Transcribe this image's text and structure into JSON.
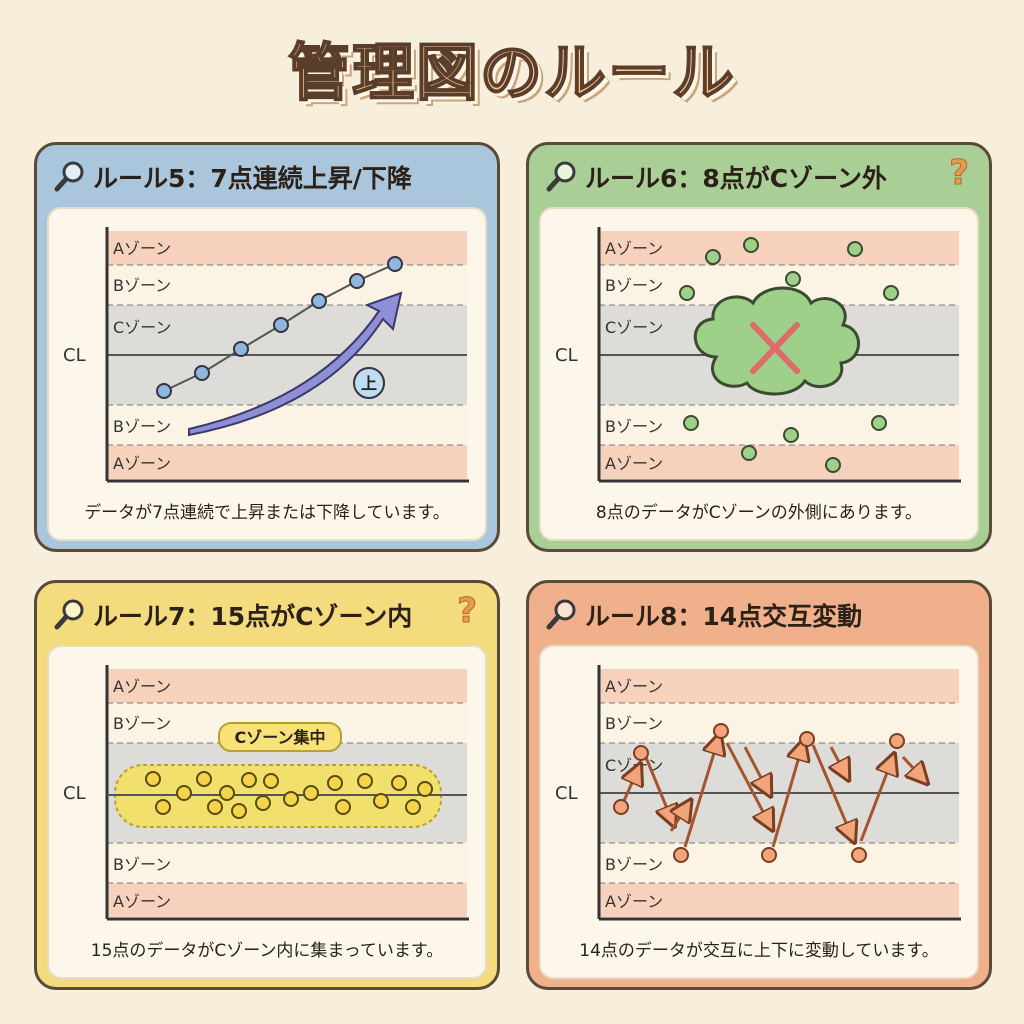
{
  "title": "管理図のルール",
  "zones": {
    "a": "Aゾーン",
    "b": "Bゾーン",
    "c": "Cゾーン",
    "cl": "CL"
  },
  "colors": {
    "a_zone": "#f6d2bd",
    "c_zone": "#dedcd8",
    "rule5_accent": "#8fb6dc",
    "rule6_accent": "#9fd08a",
    "rule7_accent": "#f2d85c",
    "rule8_accent": "#f2a47c"
  },
  "icons": [
    "magnifier-icon",
    "question-mark-icon",
    "cross-icon",
    "cloud-icon",
    "arrow-icon"
  ],
  "panels": [
    {
      "title": "ルール5：7点連続上昇/下降",
      "caption": "データが7点連続で上昇または下降しています。",
      "badge": "上",
      "question": ""
    },
    {
      "title": "ルール6：8点がCゾーン外",
      "caption": "8点のデータがCゾーンの外側にあります。",
      "badge": "",
      "question": "?"
    },
    {
      "title": "ルール7：15点がCゾーン内",
      "caption": "15点のデータがCゾーン内に集まっています。",
      "badge": "Cゾーン集中",
      "question": "?"
    },
    {
      "title": "ルール8：14点交互変動",
      "caption": "14点のデータが交互に上下に変動しています。",
      "badge": "",
      "question": ""
    }
  ]
}
